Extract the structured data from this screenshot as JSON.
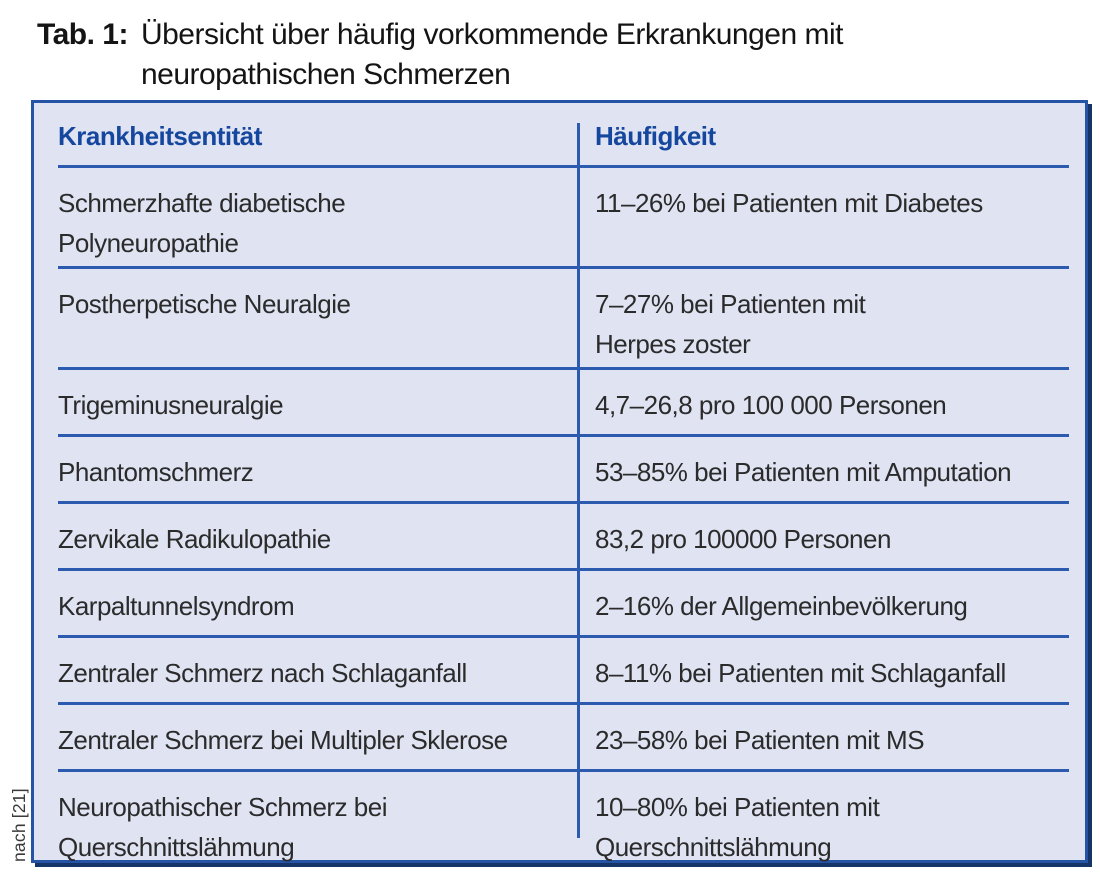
{
  "caption": {
    "label": "Tab. 1:",
    "lines": [
      "Übersicht über häufig vorkommende Erkrankungen mit",
      "neuropathischen Schmerzen"
    ]
  },
  "source_note": "nach [21]",
  "colors": {
    "table_background": "#dfe3f2",
    "table_border": "#2553a6",
    "table_shadow": "#153468",
    "grid_line": "#2b5aae",
    "header_text": "#16479e",
    "body_text": "#2b2b2b"
  },
  "table": {
    "columns": [
      "Krankheitsentität",
      "Häufigkeit"
    ],
    "rows": [
      {
        "entity": "Schmerzhafte diabetische\nPolyneuropathie",
        "frequency": "11–26% bei Patienten mit Diabetes"
      },
      {
        "entity": "Postherpetische Neuralgie",
        "frequency": "7–27% bei Patienten mit\nHerpes zoster"
      },
      {
        "entity": "Trigeminusneuralgie",
        "frequency": "4,7–26,8 pro 100 000 Personen"
      },
      {
        "entity": "Phantomschmerz",
        "frequency": "53–85% bei Patienten mit Amputation"
      },
      {
        "entity": "Zervikale Radikulopathie",
        "frequency": "83,2 pro 100000 Personen"
      },
      {
        "entity": "Karpaltunnelsyndrom",
        "frequency": "2–16% der Allgemeinbevölkerung"
      },
      {
        "entity": "Zentraler Schmerz nach Schlaganfall",
        "frequency": "8–11% bei Patienten mit Schlaganfall"
      },
      {
        "entity": "Zentraler Schmerz bei Multipler Sklerose",
        "frequency": "23–58% bei Patienten mit MS"
      },
      {
        "entity": "Neuropathischer Schmerz bei\nQuerschnittslähmung",
        "frequency": "10–80% bei Patienten mit\nQuerschnittslähmung"
      }
    ]
  }
}
